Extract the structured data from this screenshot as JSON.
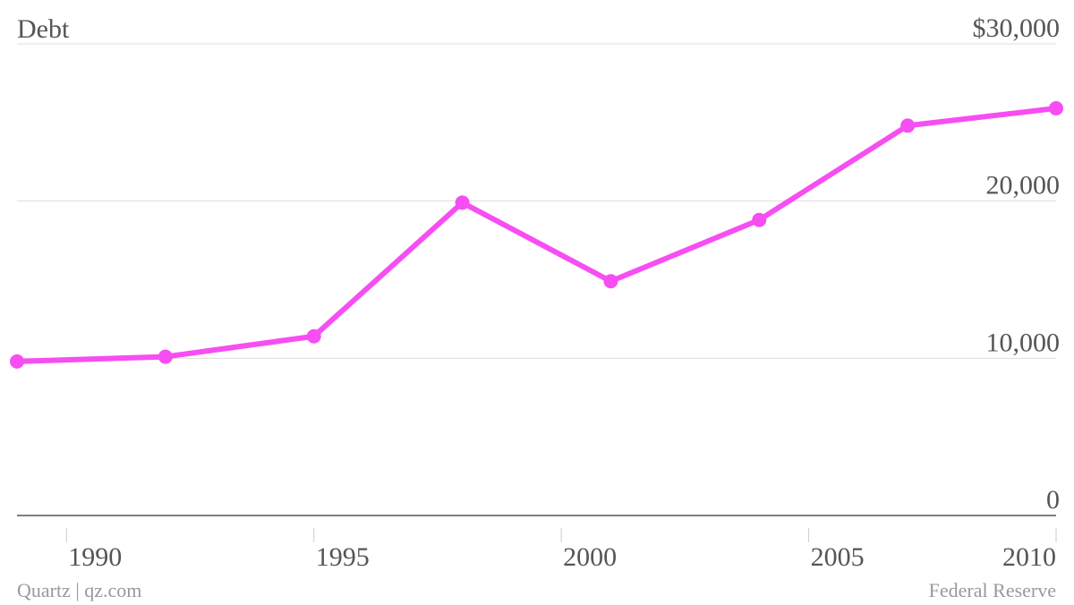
{
  "chart_data": {
    "type": "line",
    "title": "Debt",
    "x": [
      1989,
      1992,
      1995,
      1998,
      2001,
      2004,
      2007,
      2010
    ],
    "values": [
      9800,
      10100,
      11400,
      19900,
      14900,
      18800,
      24800,
      25900
    ],
    "color": "#f64ef2",
    "xlim": [
      1989,
      2010
    ],
    "xticks": [
      1990,
      1995,
      2000,
      2005,
      2010
    ],
    "ylim": [
      0,
      30000
    ],
    "yticks": [
      0,
      {
        "value": 10000,
        "label": "10,000"
      },
      {
        "value": 20000,
        "label": "20,000"
      },
      {
        "value": 30000,
        "label": "$30,000"
      }
    ],
    "grid": true,
    "credit": "Quartz | qz.com",
    "source": "Federal Reserve"
  }
}
